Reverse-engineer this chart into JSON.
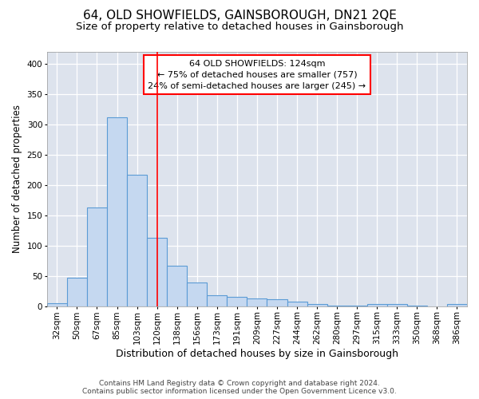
{
  "title": "64, OLD SHOWFIELDS, GAINSBOROUGH, DN21 2QE",
  "subtitle": "Size of property relative to detached houses in Gainsborough",
  "xlabel": "Distribution of detached houses by size in Gainsborough",
  "ylabel": "Number of detached properties",
  "footer_line1": "Contains HM Land Registry data © Crown copyright and database right 2024.",
  "footer_line2": "Contains public sector information licensed under the Open Government Licence v3.0.",
  "bar_labels": [
    "32sqm",
    "50sqm",
    "67sqm",
    "85sqm",
    "103sqm",
    "120sqm",
    "138sqm",
    "156sqm",
    "173sqm",
    "191sqm",
    "209sqm",
    "227sqm",
    "244sqm",
    "262sqm",
    "280sqm",
    "297sqm",
    "315sqm",
    "333sqm",
    "350sqm",
    "368sqm",
    "386sqm"
  ],
  "bar_values": [
    5,
    47,
    163,
    312,
    217,
    113,
    67,
    39,
    18,
    16,
    13,
    12,
    7,
    4,
    1,
    1,
    4,
    3,
    1,
    0,
    4
  ],
  "bar_color": "#c5d8f0",
  "bar_edge_color": "#5b9bd5",
  "background_color": "#dde3ed",
  "grid_color": "white",
  "property_label": "64 OLD SHOWFIELDS: 124sqm",
  "annotation_line1": "← 75% of detached houses are smaller (757)",
  "annotation_line2": "24% of semi-detached houses are larger (245) →",
  "vline_color": "red",
  "vline_position": 5.0,
  "ylim": [
    0,
    420
  ],
  "annotation_box_color": "white",
  "annotation_box_edge": "red",
  "title_fontsize": 11,
  "subtitle_fontsize": 9.5,
  "xlabel_fontsize": 9,
  "ylabel_fontsize": 8.5,
  "tick_fontsize": 7.5,
  "annotation_fontsize": 8,
  "footer_fontsize": 6.5
}
